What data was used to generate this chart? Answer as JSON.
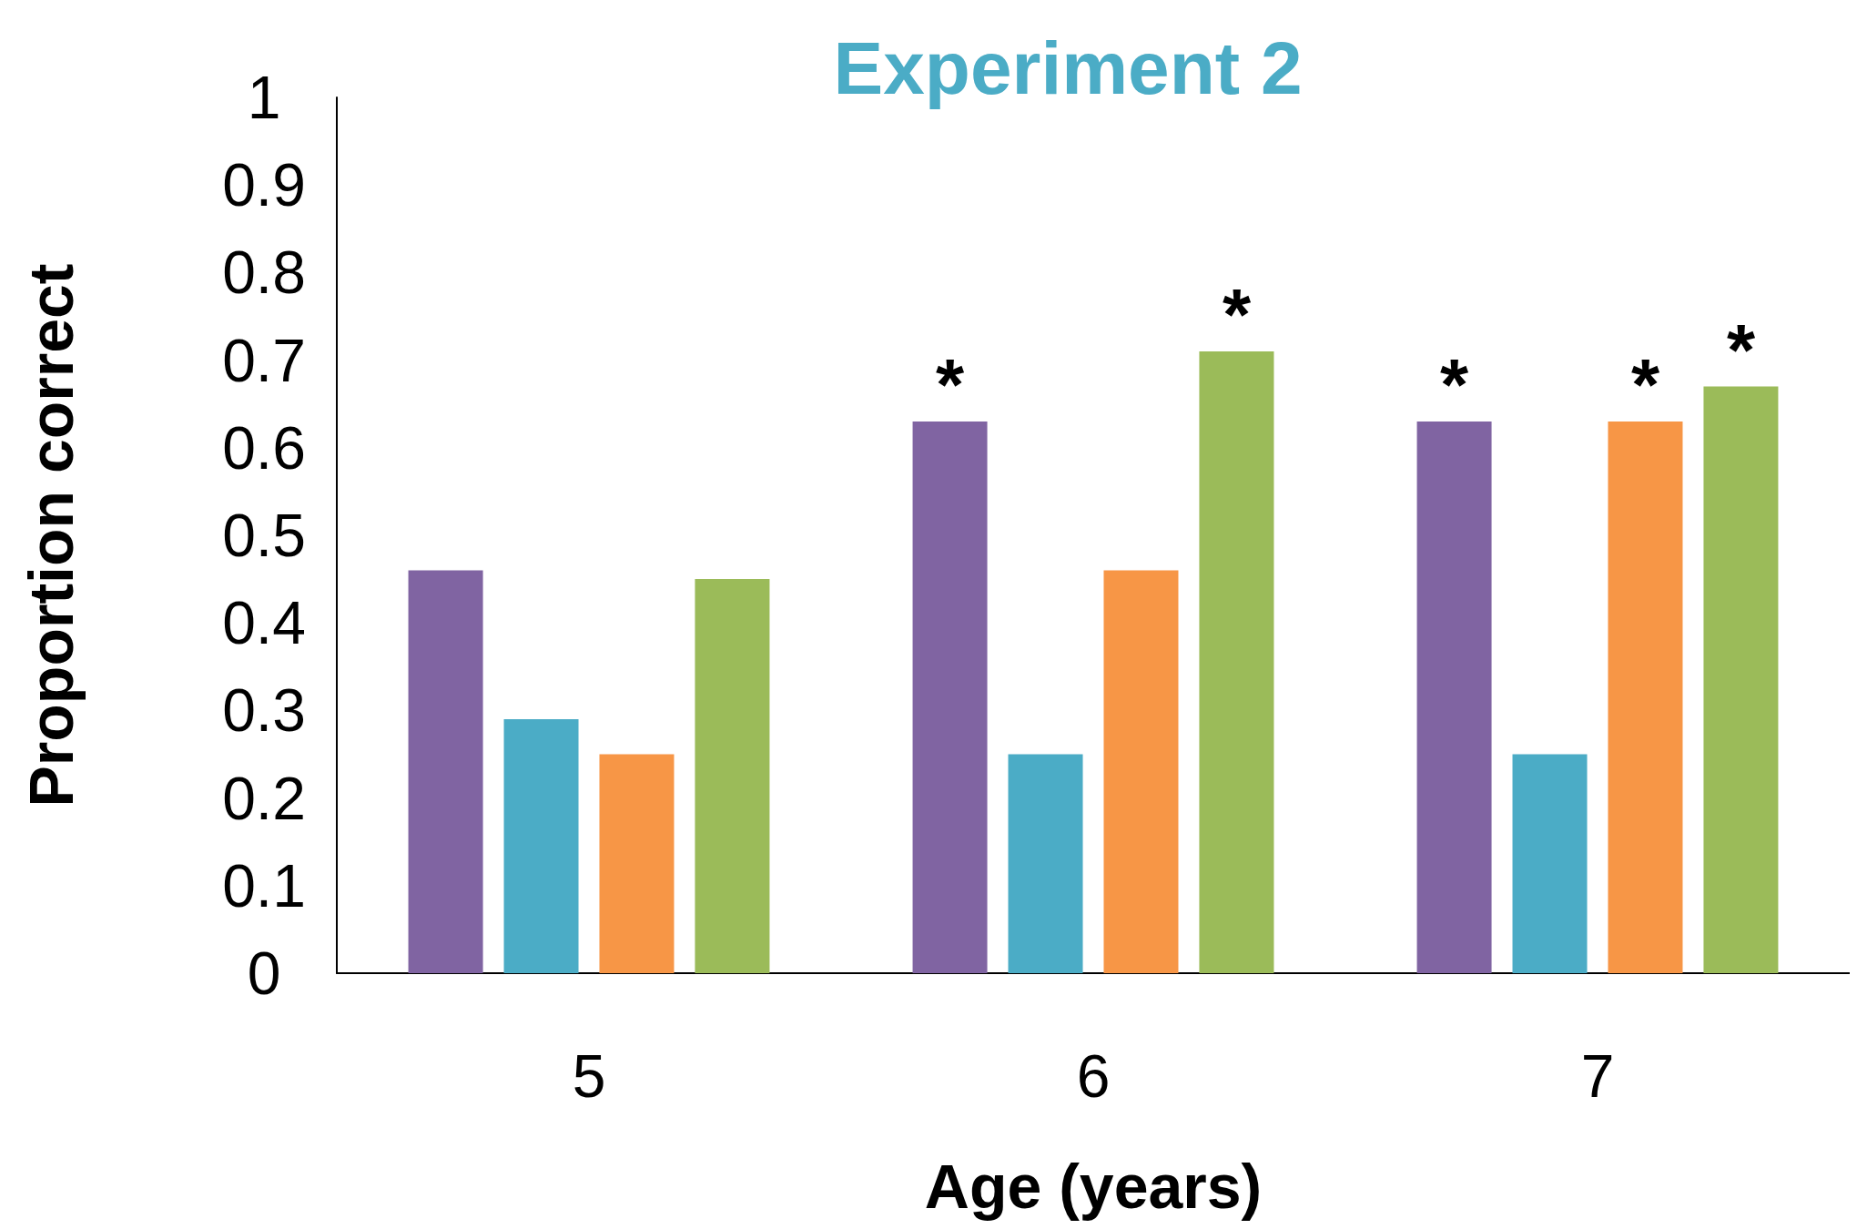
{
  "chart_data": {
    "type": "bar",
    "title": "Experiment 2",
    "xlabel": "Age (years)",
    "ylabel": "Proportion correct",
    "categories": [
      "5",
      "6",
      "7"
    ],
    "series": [
      {
        "color": "#8064a2",
        "values": [
          0.46,
          0.63,
          0.63
        ],
        "value_labels": [
          null,
          "*",
          "*"
        ]
      },
      {
        "color": "#4bacc6",
        "values": [
          0.29,
          0.25,
          0.25
        ],
        "value_labels": [
          null,
          null,
          null
        ]
      },
      {
        "color": "#f79646",
        "values": [
          0.25,
          0.46,
          0.63
        ],
        "value_labels": [
          null,
          null,
          "*"
        ]
      },
      {
        "color": "#9bbb59",
        "values": [
          0.45,
          0.71,
          0.67
        ],
        "value_labels": [
          null,
          "*",
          "*"
        ]
      }
    ],
    "ylim": [
      0,
      1
    ],
    "yticks": [
      0,
      0.1,
      0.2,
      0.3,
      0.4,
      0.5,
      0.6,
      0.7,
      0.8,
      0.9,
      1
    ],
    "grid": false
  }
}
